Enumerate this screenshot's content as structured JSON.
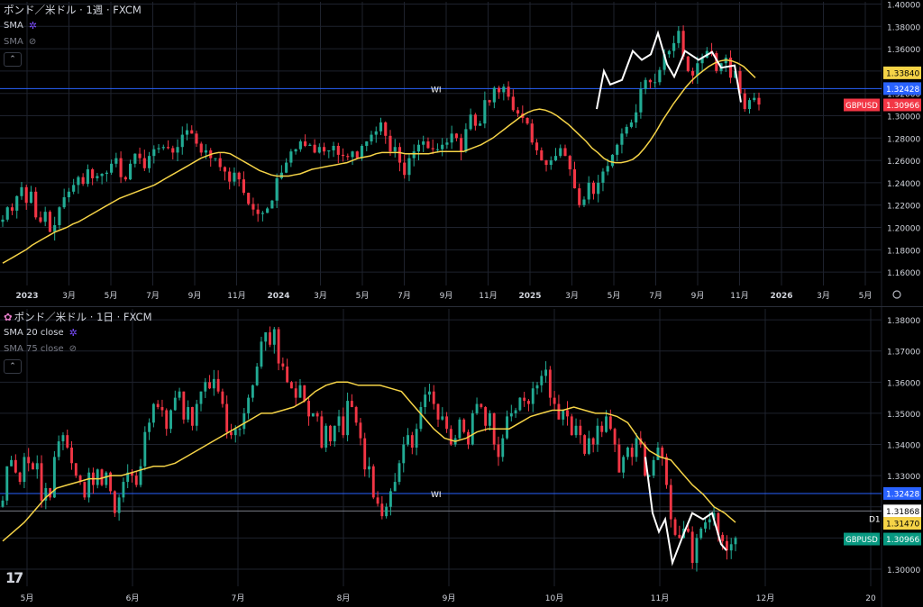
{
  "chart_data": [
    {
      "type": "candlestick",
      "title": "ポンド／米ドル · 1週 · FXCM",
      "symbol": "GBPUSD",
      "timeframe": "1週",
      "indicators": [
        {
          "name": "SMA",
          "visible": true,
          "color": "#f5d347"
        },
        {
          "name": "SMA",
          "visible": false
        }
      ],
      "x_ticks": [
        "2023",
        "3月",
        "5月",
        "7月",
        "9月",
        "11月",
        "2024",
        "3月",
        "5月",
        "7月",
        "9月",
        "11月",
        "2025",
        "3月",
        "5月",
        "7月",
        "9月",
        "11月",
        "2026",
        "3月",
        "5月"
      ],
      "y_ticks": [
        "1.40000",
        "1.38000",
        "1.36000",
        "1.34000",
        "1.32000",
        "1.30000",
        "1.28000",
        "1.26000",
        "1.24000",
        "1.22000",
        "1.20000",
        "1.18000",
        "1.16000"
      ],
      "ylim": [
        1.148,
        1.402
      ],
      "horizontal_lines": [
        {
          "label": "WI",
          "value": 1.32428,
          "color": "#2962ff"
        }
      ],
      "price_labels": [
        {
          "text": "1.33840",
          "value": 1.3384,
          "bg": "#f5d347",
          "fg": "#000000"
        },
        {
          "text": "1.32428",
          "value": 1.32428,
          "bg": "#2962ff",
          "fg": "#ffffff"
        },
        {
          "symbol": "GBPUSD",
          "text": "1.30966",
          "value": 1.30966,
          "bg": "#f23645",
          "fg": "#ffffff"
        }
      ],
      "weekly_closes": [
        1.207,
        1.218,
        1.215,
        1.228,
        1.236,
        1.222,
        1.232,
        1.209,
        1.205,
        1.214,
        1.196,
        1.202,
        1.218,
        1.227,
        1.232,
        1.238,
        1.245,
        1.239,
        1.252,
        1.244,
        1.246,
        1.248,
        1.249,
        1.257,
        1.262,
        1.245,
        1.243,
        1.257,
        1.266,
        1.262,
        1.253,
        1.264,
        1.27,
        1.271,
        1.272,
        1.271,
        1.267,
        1.272,
        1.283,
        1.287,
        1.284,
        1.275,
        1.267,
        1.269,
        1.262,
        1.262,
        1.254,
        1.25,
        1.241,
        1.249,
        1.243,
        1.231,
        1.221,
        1.216,
        1.212,
        1.213,
        1.217,
        1.224,
        1.244,
        1.249,
        1.258,
        1.268,
        1.27,
        1.277,
        1.273,
        1.274,
        1.267,
        1.272,
        1.268,
        1.269,
        1.273,
        1.265,
        1.264,
        1.263,
        1.268,
        1.262,
        1.273,
        1.277,
        1.283,
        1.286,
        1.294,
        1.282,
        1.268,
        1.272,
        1.258,
        1.247,
        1.262,
        1.268,
        1.274,
        1.277,
        1.271,
        1.27,
        1.27,
        1.274,
        1.276,
        1.284,
        1.28,
        1.268,
        1.288,
        1.301,
        1.291,
        1.293,
        1.314,
        1.312,
        1.325,
        1.321,
        1.326,
        1.317,
        1.305,
        1.302,
        1.298,
        1.293,
        1.276,
        1.269,
        1.26,
        1.256,
        1.26,
        1.264,
        1.271,
        1.264,
        1.252,
        1.235,
        1.22,
        1.225,
        1.24,
        1.23,
        1.24,
        1.25,
        1.255,
        1.265,
        1.274,
        1.284,
        1.29,
        1.294,
        1.303,
        1.324,
        1.332,
        1.33,
        1.33,
        1.341,
        1.355,
        1.358,
        1.365,
        1.376,
        1.353,
        1.34,
        1.336,
        1.347,
        1.352,
        1.358,
        1.356,
        1.34,
        1.347,
        1.352,
        1.334,
        1.34,
        1.32,
        1.306,
        1.314,
        1.316,
        1.31
      ],
      "sma_line": [
        1.168,
        1.171,
        1.174,
        1.177,
        1.18,
        1.184,
        1.187,
        1.19,
        1.193,
        1.196,
        1.198,
        1.2,
        1.203,
        1.205,
        1.208,
        1.211,
        1.214,
        1.217,
        1.22,
        1.223,
        1.226,
        1.228,
        1.23,
        1.232,
        1.234,
        1.236,
        1.238,
        1.241,
        1.244,
        1.247,
        1.25,
        1.253,
        1.256,
        1.259,
        1.262,
        1.264,
        1.266,
        1.267,
        1.267,
        1.266,
        1.263,
        1.26,
        1.257,
        1.254,
        1.251,
        1.249,
        1.247,
        1.246,
        1.246,
        1.246,
        1.247,
        1.248,
        1.25,
        1.252,
        1.253,
        1.254,
        1.255,
        1.256,
        1.257,
        1.258,
        1.26,
        1.262,
        1.263,
        1.264,
        1.266,
        1.267,
        1.267,
        1.267,
        1.267,
        1.266,
        1.266,
        1.266,
        1.266,
        1.266,
        1.267,
        1.268,
        1.268,
        1.268,
        1.268,
        1.268,
        1.27,
        1.272,
        1.274,
        1.277,
        1.28,
        1.284,
        1.288,
        1.292,
        1.296,
        1.3,
        1.303,
        1.305,
        1.306,
        1.305,
        1.303,
        1.3,
        1.296,
        1.292,
        1.287,
        1.282,
        1.277,
        1.271,
        1.267,
        1.262,
        1.259,
        1.258,
        1.258,
        1.259,
        1.261,
        1.265,
        1.271,
        1.278,
        1.286,
        1.295,
        1.303,
        1.311,
        1.318,
        1.325,
        1.331,
        1.336,
        1.34,
        1.344,
        1.347,
        1.349,
        1.35,
        1.349,
        1.347,
        1.344,
        1.339,
        1.334
      ]
    },
    {
      "type": "candlestick",
      "title": "ポンド／米ドル · 1日 · FXCM",
      "symbol": "GBPUSD",
      "timeframe": "1日",
      "indicators": [
        {
          "name": "SMA 20 close",
          "visible": true,
          "color": "#f5d347"
        },
        {
          "name": "SMA 75 close",
          "visible": false
        }
      ],
      "x_ticks": [
        "5月",
        "6月",
        "7月",
        "8月",
        "9月",
        "10月",
        "11月",
        "12月",
        "20"
      ],
      "y_ticks": [
        "1.38000",
        "1.37000",
        "1.36000",
        "1.35000",
        "1.34000",
        "1.33000",
        "1.32000",
        "1.31000",
        "1.30000"
      ],
      "ylim": [
        1.2945,
        1.3835
      ],
      "horizontal_lines": [
        {
          "label": "WI",
          "value": 1.32428,
          "color": "#2962ff"
        },
        {
          "label": "D1",
          "value": 1.31868,
          "color": "#787b86"
        }
      ],
      "price_labels": [
        {
          "text": "1.32428",
          "value": 1.32428,
          "bg": "#2962ff",
          "fg": "#ffffff"
        },
        {
          "text": "1.31868",
          "value": 1.31868,
          "bg": "#ffffff",
          "fg": "#000000"
        },
        {
          "text": "1.31470",
          "value": 1.3147,
          "bg": "#f5d347",
          "fg": "#000000"
        },
        {
          "symbol": "GBPUSD",
          "text": "1.30966",
          "value": 1.30966,
          "bg": "#089981",
          "fg": "#ffffff"
        }
      ],
      "daily_closes": [
        1.322,
        1.333,
        1.335,
        1.331,
        1.328,
        1.336,
        1.334,
        1.332,
        1.334,
        1.322,
        1.326,
        1.323,
        1.336,
        1.341,
        1.343,
        1.339,
        1.334,
        1.33,
        1.328,
        1.323,
        1.331,
        1.327,
        1.332,
        1.327,
        1.331,
        1.325,
        1.318,
        1.323,
        1.328,
        1.331,
        1.33,
        1.327,
        1.333,
        1.344,
        1.347,
        1.353,
        1.352,
        1.351,
        1.345,
        1.351,
        1.355,
        1.357,
        1.348,
        1.352,
        1.346,
        1.353,
        1.357,
        1.36,
        1.358,
        1.361,
        1.357,
        1.353,
        1.344,
        1.343,
        1.345,
        1.345,
        1.35,
        1.355,
        1.359,
        1.365,
        1.373,
        1.376,
        1.372,
        1.377,
        1.366,
        1.365,
        1.36,
        1.358,
        1.355,
        1.359,
        1.354,
        1.349,
        1.35,
        1.349,
        1.339,
        1.346,
        1.341,
        1.346,
        1.349,
        1.343,
        1.354,
        1.352,
        1.347,
        1.342,
        1.332,
        1.333,
        1.323,
        1.321,
        1.317,
        1.32,
        1.325,
        1.328,
        1.334,
        1.34,
        1.343,
        1.339,
        1.345,
        1.352,
        1.356,
        1.357,
        1.353,
        1.348,
        1.349,
        1.345,
        1.34,
        1.342,
        1.348,
        1.344,
        1.34,
        1.35,
        1.353,
        1.352,
        1.346,
        1.35,
        1.34,
        1.336,
        1.342,
        1.349,
        1.35,
        1.351,
        1.355,
        1.354,
        1.353,
        1.358,
        1.359,
        1.362,
        1.364,
        1.355,
        1.353,
        1.348,
        1.351,
        1.349,
        1.343,
        1.346,
        1.343,
        1.337,
        1.342,
        1.34,
        1.346,
        1.344,
        1.349,
        1.345,
        1.34,
        1.331,
        1.336,
        1.339,
        1.336,
        1.342,
        1.34,
        1.33,
        1.33,
        1.335,
        1.339,
        1.336,
        1.327,
        1.316,
        1.311,
        1.31,
        1.313,
        1.312,
        1.302,
        1.31,
        1.313,
        1.315,
        1.316,
        1.318,
        1.311,
        1.309,
        1.306,
        1.308,
        1.31
      ],
      "sma_line": [
        1.309,
        1.312,
        1.315,
        1.319,
        1.323,
        1.326,
        1.327,
        1.328,
        1.329,
        1.329,
        1.33,
        1.33,
        1.331,
        1.332,
        1.333,
        1.333,
        1.334,
        1.336,
        1.338,
        1.34,
        1.342,
        1.344,
        1.346,
        1.348,
        1.35,
        1.35,
        1.351,
        1.352,
        1.354,
        1.357,
        1.359,
        1.36,
        1.36,
        1.359,
        1.359,
        1.359,
        1.358,
        1.357,
        1.353,
        1.349,
        1.345,
        1.342,
        1.341,
        1.342,
        1.344,
        1.345,
        1.345,
        1.345,
        1.347,
        1.349,
        1.35,
        1.351,
        1.351,
        1.352,
        1.351,
        1.35,
        1.35,
        1.349,
        1.347,
        1.342,
        1.338,
        1.336,
        1.335,
        1.331,
        1.327,
        1.324,
        1.32,
        1.318,
        1.315
      ]
    }
  ],
  "legend_top": {
    "title": "ポンド／米ドル · 1週 · FXCM",
    "ind1": "SMA",
    "ind2": "SMA"
  },
  "legend_bottom": {
    "title": "ポンド／米ドル · 1日 · FXCM",
    "ind1": "SMA 20 close",
    "ind2": "SMA 75 close"
  },
  "colors": {
    "up": "#089981",
    "up_bright": "#22ab94",
    "down": "#f23645",
    "sma": "#f5d347",
    "grid": "#1e222d",
    "wi": "#2962ff",
    "text": "#d1d4dc"
  },
  "icons": {
    "settings": "gear-icon",
    "hidden": "eye-off-icon",
    "collapse": "chevron-up-icon",
    "chart_settings": "settings-circle-icon",
    "logo": "tradingview-logo"
  }
}
